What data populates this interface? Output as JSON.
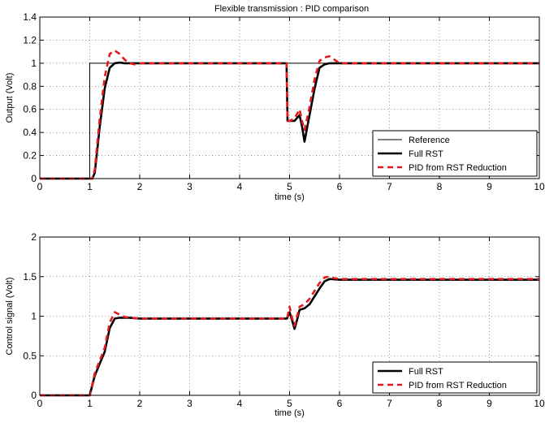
{
  "chart_data": [
    {
      "type": "line",
      "title": "Flexible transmission : PID comparison",
      "xlabel": "time (s)",
      "ylabel": "Output (Volt)",
      "xlim": [
        0,
        10
      ],
      "ylim": [
        0,
        1.4
      ],
      "x_ticks": [
        0,
        1,
        2,
        3,
        4,
        5,
        6,
        7,
        8,
        9,
        10
      ],
      "y_ticks": [
        0,
        0.2,
        0.4,
        0.6,
        0.8,
        1,
        1.2,
        1.4
      ],
      "grid": "dotted",
      "legend_position": "bottom-right",
      "series": [
        {
          "name": "Reference",
          "color": "#000000",
          "style": "thin-solid",
          "x": [
            0,
            1,
            1,
            10
          ],
          "y": [
            0,
            0,
            1,
            1
          ]
        },
        {
          "name": "Full RST",
          "color": "#000000",
          "style": "thick-solid",
          "x": [
            0,
            1.05,
            1.1,
            1.2,
            1.3,
            1.4,
            1.5,
            1.6,
            1.7,
            1.8,
            2.0,
            3.0,
            4.0,
            4.94,
            4.96,
            5.0,
            5.1,
            5.2,
            5.25,
            5.3,
            5.4,
            5.5,
            5.6,
            5.7,
            5.8,
            6.0,
            10
          ],
          "y": [
            0,
            0,
            0.05,
            0.45,
            0.78,
            0.96,
            1.0,
            1.005,
            1.0,
            1.0,
            1.0,
            1.0,
            1.0,
            1.0,
            0.5,
            0.5,
            0.5,
            0.55,
            0.45,
            0.32,
            0.55,
            0.78,
            0.96,
            0.99,
            1.0,
            1.0,
            1.0
          ]
        },
        {
          "name": "PID from RST Reduction",
          "color": "#e41a1c",
          "style": "dashed",
          "x": [
            0,
            1.05,
            1.1,
            1.2,
            1.3,
            1.4,
            1.5,
            1.6,
            1.7,
            1.8,
            1.9,
            2.0,
            3.0,
            4.0,
            4.94,
            4.96,
            5.0,
            5.1,
            5.2,
            5.25,
            5.3,
            5.4,
            5.5,
            5.6,
            5.7,
            5.8,
            5.9,
            6.0,
            10
          ],
          "y": [
            0,
            0,
            0.08,
            0.52,
            0.88,
            1.08,
            1.11,
            1.08,
            1.03,
            1.0,
            0.99,
            1.0,
            1.0,
            1.0,
            1.0,
            0.5,
            0.5,
            0.52,
            0.6,
            0.5,
            0.42,
            0.62,
            0.86,
            1.02,
            1.05,
            1.06,
            1.03,
            1.0,
            1.0
          ]
        }
      ]
    },
    {
      "type": "line",
      "title": "",
      "xlabel": "time (s)",
      "ylabel": "Control signal (Volt)",
      "xlim": [
        0,
        10
      ],
      "ylim": [
        0,
        2
      ],
      "x_ticks": [
        0,
        1,
        2,
        3,
        4,
        5,
        6,
        7,
        8,
        9,
        10
      ],
      "y_ticks": [
        0,
        0.5,
        1,
        1.5,
        2
      ],
      "grid": "dotted",
      "legend_position": "bottom-right",
      "series": [
        {
          "name": "Full RST",
          "color": "#000000",
          "style": "thick-solid",
          "x": [
            0,
            1.0,
            1.1,
            1.3,
            1.4,
            1.5,
            1.6,
            1.8,
            2.0,
            3.0,
            4.0,
            4.9,
            4.95,
            5.0,
            5.05,
            5.1,
            5.15,
            5.2,
            5.3,
            5.4,
            5.5,
            5.6,
            5.7,
            5.8,
            6.0,
            10
          ],
          "y": [
            0,
            0,
            0.25,
            0.55,
            0.85,
            0.97,
            0.98,
            0.98,
            0.97,
            0.97,
            0.97,
            0.97,
            0.97,
            1.05,
            0.95,
            0.84,
            0.95,
            1.08,
            1.1,
            1.15,
            1.25,
            1.35,
            1.44,
            1.47,
            1.46,
            1.46
          ]
        },
        {
          "name": "PID from RST Reduction",
          "color": "#e41a1c",
          "style": "dashed",
          "x": [
            0,
            1.0,
            1.1,
            1.3,
            1.4,
            1.5,
            1.6,
            1.7,
            1.8,
            2.0,
            3.0,
            4.0,
            4.9,
            4.95,
            5.0,
            5.05,
            5.1,
            5.15,
            5.2,
            5.3,
            5.4,
            5.5,
            5.6,
            5.7,
            5.8,
            5.9,
            6.0,
            10
          ],
          "y": [
            0,
            0,
            0.28,
            0.6,
            0.92,
            1.05,
            1.02,
            0.99,
            0.98,
            0.97,
            0.97,
            0.97,
            0.97,
            0.97,
            1.12,
            0.98,
            0.88,
            1.0,
            1.12,
            1.15,
            1.22,
            1.32,
            1.42,
            1.49,
            1.5,
            1.48,
            1.47,
            1.47
          ]
        }
      ]
    }
  ]
}
